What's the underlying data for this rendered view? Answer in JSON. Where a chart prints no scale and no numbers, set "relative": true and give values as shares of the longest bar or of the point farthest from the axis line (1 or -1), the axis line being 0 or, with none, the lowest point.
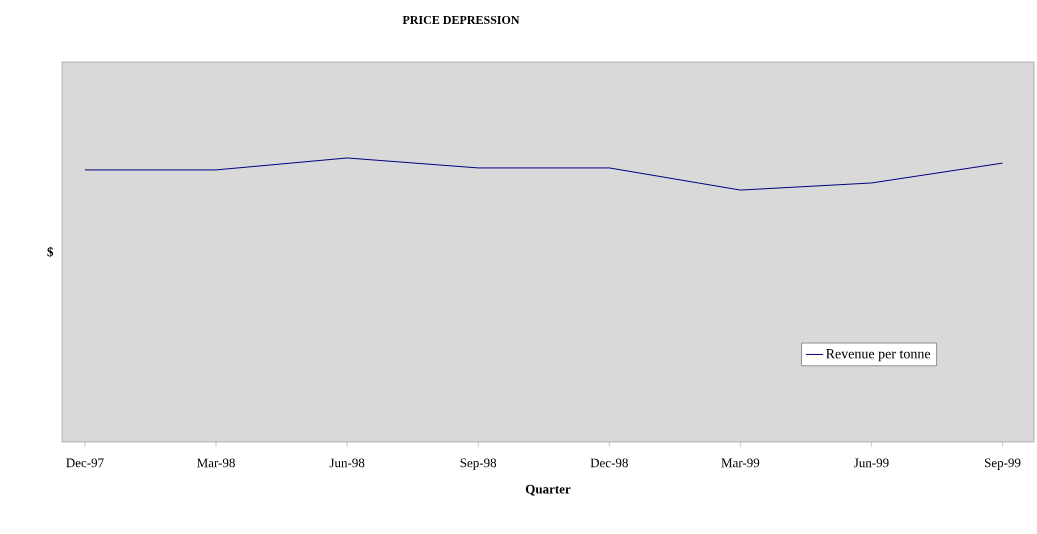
{
  "chart_data": {
    "type": "line",
    "title": "PRICE DEPRESSION",
    "xlabel": "Quarter",
    "ylabel": "$",
    "categories": [
      "Dec-97",
      "Mar-98",
      "Jun-98",
      "Sep-98",
      "Dec-98",
      "Mar-99",
      "Jun-99",
      "Sep-99"
    ],
    "series": [
      {
        "name": "Revenue per tonne",
        "color": "#000080",
        "values": [
          0.958,
          0.958,
          1,
          0.965,
          0.965,
          0.887,
          0.912,
          0.982
        ]
      }
    ],
    "relative": true,
    "legend": "bottom right"
  }
}
